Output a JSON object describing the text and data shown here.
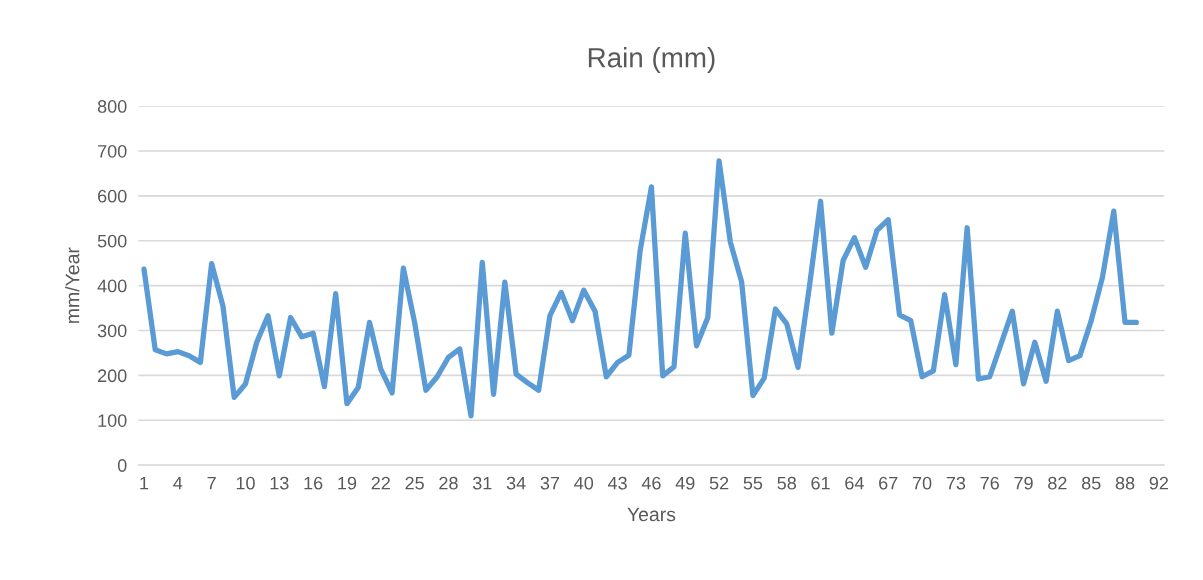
{
  "chart_data": {
    "type": "line",
    "title": "Rain (mm)",
    "xlabel": "Years",
    "ylabel": "mm/Year",
    "categories": [
      "1",
      null,
      null,
      "4",
      null,
      null,
      "7",
      null,
      null,
      "10",
      null,
      null,
      "13",
      null,
      null,
      "16",
      null,
      null,
      "19",
      null,
      null,
      "22",
      null,
      null,
      "25",
      null,
      null,
      "28",
      null,
      null,
      "31",
      null,
      null,
      "34",
      null,
      null,
      "37",
      null,
      null,
      "40",
      null,
      null,
      "43",
      null,
      null,
      "46",
      null,
      null,
      "49",
      null,
      null,
      "52",
      null,
      null,
      "55",
      null,
      null,
      "58",
      null,
      null,
      "61",
      null,
      null,
      "64",
      null,
      null,
      "67",
      null,
      null,
      "70",
      null,
      null,
      "73",
      null,
      null,
      "76",
      null,
      null,
      "79",
      null,
      null,
      "82",
      null,
      null,
      "85",
      null,
      null,
      "88",
      null,
      null,
      "92"
    ],
    "series": [
      {
        "color": "#5b9bd5",
        "values": [
          437,
          257,
          248,
          253,
          244,
          229,
          449,
          355,
          151,
          181,
          274,
          333,
          199,
          329,
          286,
          294,
          175,
          382,
          137,
          173,
          318,
          214,
          161,
          439,
          318,
          167,
          197,
          240,
          259,
          110,
          452,
          158,
          408,
          203,
          184,
          167,
          333,
          385,
          322,
          390,
          343,
          197,
          229,
          245,
          478,
          620,
          199,
          219,
          517,
          266,
          329,
          678,
          497,
          408,
          155,
          194,
          348,
          315,
          218,
          396,
          588,
          294,
          456,
          507,
          441,
          523,
          547,
          335,
          322,
          197,
          210,
          380,
          224,
          529,
          192,
          197,
          270,
          343,
          181,
          274,
          187,
          343,
          233,
          244,
          322,
          419,
          566,
          318,
          318,
          null,
          null
        ]
      }
    ],
    "ylim": [
      0,
      800
    ],
    "yticks": [
      0,
      100,
      200,
      300,
      400,
      500,
      600,
      700,
      800
    ],
    "grid": "y",
    "legend": false,
    "marker": "none",
    "line_style": "solid"
  }
}
